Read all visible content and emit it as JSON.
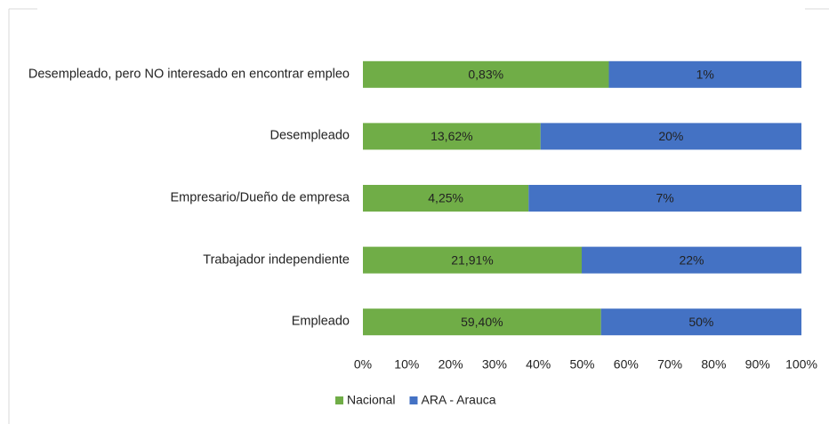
{
  "chart_data": {
    "type": "bar",
    "orientation": "horizontal",
    "stacking": "percent",
    "categories": [
      "Desempleado, pero NO interesado en encontrar empleo",
      "Desempleado",
      "Empresario/Dueño de empresa",
      "Trabajador independiente",
      "Empleado"
    ],
    "series": [
      {
        "name": "Nacional",
        "color": "#70ad47",
        "values": [
          0.83,
          13.62,
          4.25,
          21.91,
          59.4
        ],
        "value_labels": [
          "0,83%",
          "13,62%",
          "4,25%",
          "21,91%",
          "59,40%"
        ]
      },
      {
        "name": "ARA - Arauca",
        "color": "#4472c4",
        "values": [
          0.65,
          20,
          7,
          22,
          50
        ],
        "value_labels": [
          "1%",
          "20%",
          "7%",
          "22%",
          "50%"
        ]
      }
    ],
    "xlim": [
      0,
      100
    ],
    "xticks": [
      {
        "value": 0,
        "label": "0%"
      },
      {
        "value": 10,
        "label": "10%"
      },
      {
        "value": 20,
        "label": "20%"
      },
      {
        "value": 30,
        "label": "30%"
      },
      {
        "value": 40,
        "label": "40%"
      },
      {
        "value": 50,
        "label": "50%"
      },
      {
        "value": 60,
        "label": "60%"
      },
      {
        "value": 70,
        "label": "70%"
      },
      {
        "value": 80,
        "label": "80%"
      },
      {
        "value": 90,
        "label": "90%"
      },
      {
        "value": 100,
        "label": "100%"
      }
    ],
    "grid": false,
    "legend": "bottom"
  }
}
